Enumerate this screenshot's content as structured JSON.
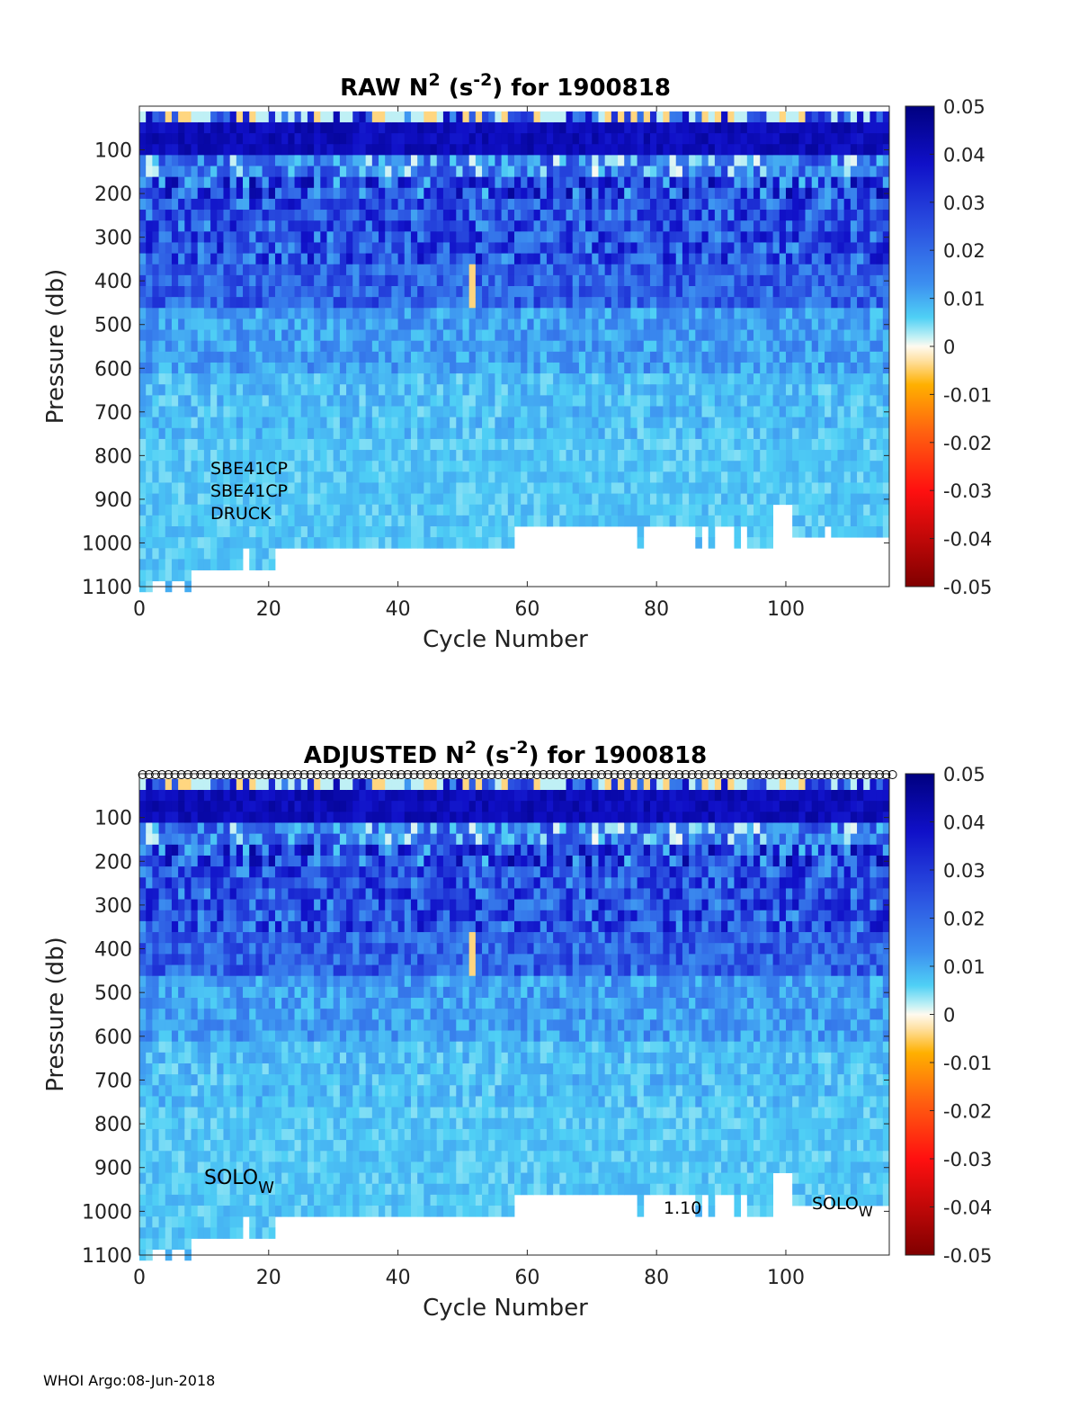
{
  "chart_data": [
    {
      "type": "heatmap",
      "title_prefix": "RAW N",
      "title_sup1": "2",
      "title_mid": " (s",
      "title_sup2": "-2",
      "title_suffix": ") for 1900818",
      "xlabel": "Cycle Number",
      "ylabel": "Pressure (db)",
      "xlim": [
        0,
        116
      ],
      "ylim": [
        1100,
        0
      ],
      "xticks": [
        "0",
        "20",
        "40",
        "60",
        "80",
        "100"
      ],
      "yticks": [
        "100",
        "200",
        "300",
        "400",
        "500",
        "600",
        "700",
        "800",
        "900",
        "1000",
        "1100"
      ],
      "colorbar_ticks": [
        "0.05",
        "0.04",
        "0.03",
        "0.02",
        "0.01",
        "0",
        "-0.01",
        "-0.02",
        "-0.03",
        "-0.04",
        "-0.05"
      ],
      "clim": [
        -0.05,
        0.05
      ],
      "annotations": [
        "SBE41CP",
        "SBE41CP",
        "DRUCK"
      ]
    },
    {
      "type": "heatmap",
      "title_prefix": "ADJUSTED N",
      "title_sup1": "2",
      "title_mid": " (s",
      "title_sup2": "-2",
      "title_suffix": ") for 1900818",
      "xlabel": "Cycle Number",
      "ylabel": "Pressure (db)",
      "xlim": [
        0,
        116
      ],
      "ylim": [
        1100,
        0
      ],
      "xticks": [
        "0",
        "20",
        "40",
        "60",
        "80",
        "100"
      ],
      "yticks": [
        "100",
        "200",
        "300",
        "400",
        "500",
        "600",
        "700",
        "800",
        "900",
        "1000",
        "1100"
      ],
      "colorbar_ticks": [
        "0.05",
        "0.04",
        "0.03",
        "0.02",
        "0.01",
        "0",
        "-0.01",
        "-0.02",
        "-0.03",
        "-0.04",
        "-0.05"
      ],
      "clim": [
        -0.05,
        0.05
      ],
      "annotations": {
        "left_main": "SOLO",
        "left_sub": "W",
        "mid": "1.10",
        "right_main": "SOLO",
        "right_sub": "W"
      },
      "marker_row": "circles"
    }
  ],
  "footer": "WHOI Argo:08-Jun-2018"
}
